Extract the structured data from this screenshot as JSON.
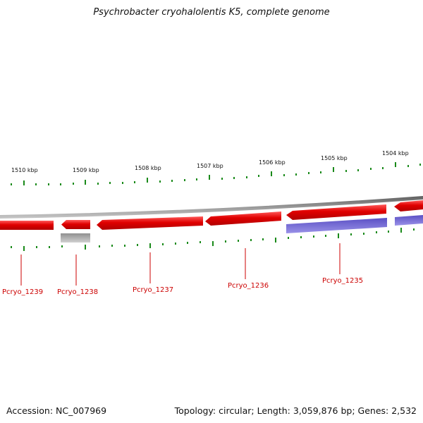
{
  "title": "Psychrobacter cryohalolentis K5, complete genome",
  "footer": {
    "accession": "Accession: NC_007969",
    "summary": "Topology: circular; Length: 3,059,876 bp; Genes: 2,532"
  },
  "colors": {
    "forward_gene": "#e00000",
    "reverse_gene": "#e00000",
    "protein_bar": "#6a5fd0",
    "rna_bar": "#a8a8a8",
    "backbone": "#7a7a7a",
    "tick": "#1a8a1a",
    "label": "#cc0000"
  },
  "ruler": {
    "labels": [
      "1510 kbp",
      "1509 kbp",
      "1508 kbp",
      "1507 kbp",
      "1506 kbp",
      "1505 kbp",
      "1504 kbp"
    ]
  },
  "genes": [
    {
      "label": "Pcryo_1239"
    },
    {
      "label": "Pcryo_1238"
    },
    {
      "label": "Pcryo_1237"
    },
    {
      "label": "Pcryo_1236"
    },
    {
      "label": "Pcryo_1235"
    }
  ]
}
